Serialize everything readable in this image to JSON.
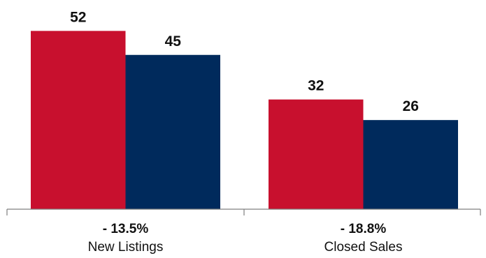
{
  "colors": {
    "series_1": "#c8102e",
    "series_2": "#002a5c",
    "axis": "#7f7f7f",
    "text": "#111111"
  },
  "chart_data": {
    "type": "bar",
    "title": "",
    "xlabel": "",
    "ylabel": "",
    "grid": false,
    "legend": "none",
    "categories": [
      "New Listings",
      "Closed Sales"
    ],
    "change_labels": [
      "- 13.5%",
      "- 18.8%"
    ],
    "series": [
      {
        "values": [
          52,
          32
        ],
        "color": "#c8102e"
      },
      {
        "values": [
          45,
          26
        ],
        "color": "#002a5c"
      }
    ],
    "ylim": [
      0,
      60
    ]
  }
}
